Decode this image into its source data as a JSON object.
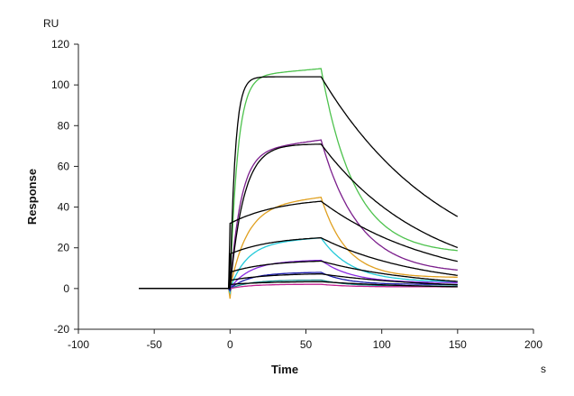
{
  "chart_data": {
    "type": "line",
    "title": "",
    "xlabel": "Time",
    "ylabel": "Response",
    "x_unit": "s",
    "y_unit": "RU",
    "xlim": [
      -100,
      200
    ],
    "ylim": [
      -20,
      120
    ],
    "xticks": [
      -100,
      -50,
      0,
      50,
      100,
      150,
      200
    ],
    "yticks": [
      -20,
      0,
      20,
      40,
      60,
      80,
      100,
      120
    ],
    "xtick_labels": [
      "-100",
      "-50",
      "0",
      "50",
      "100",
      "150",
      "200"
    ],
    "ytick_labels": [
      "-20",
      "0",
      "20",
      "40",
      "60",
      "80",
      "100",
      "120"
    ],
    "grid": false,
    "legend": "none",
    "association_window": [
      0,
      60
    ],
    "dissociation_end": 150,
    "baseline_start": -60,
    "series": [
      {
        "color": "#4dc24d",
        "plateau": 104,
        "kon": 0.2,
        "end_slope": 4,
        "koff": 0.045,
        "residual": 0.158,
        "spike": -1
      },
      {
        "color": "#7b1e8c",
        "plateau": 67,
        "kon": 0.14,
        "end_slope": 6,
        "koff": 0.04,
        "residual": 0.1,
        "spike": -3
      },
      {
        "color": "#e0a020",
        "plateau": 40,
        "kon": 0.09,
        "end_slope": 5,
        "koff": 0.06,
        "residual": 0.12,
        "spike": -5
      },
      {
        "color": "#22c9d9",
        "plateau": 22,
        "kon": 0.09,
        "end_slope": 3,
        "koff": 0.05,
        "residual": 0.13,
        "spike": -2
      },
      {
        "color": "#8a2be2",
        "plateau": 13,
        "kon": 0.08,
        "end_slope": 1,
        "koff": 0.05,
        "residual": 0.2,
        "spike": -1
      },
      {
        "color": "#1a1aa8",
        "plateau": 7.5,
        "kon": 0.08,
        "end_slope": 0.5,
        "koff": 0.06,
        "residual": 0.25,
        "spike": -1
      },
      {
        "color": "#1a8c8c",
        "plateau": 4,
        "kon": 0.08,
        "end_slope": 0.2,
        "koff": 0.06,
        "residual": 0.3,
        "spike": 0
      },
      {
        "color": "#c02090",
        "plateau": 2,
        "kon": 0.08,
        "end_slope": 0.1,
        "koff": 0.06,
        "residual": 0.4,
        "spike": 0
      }
    ],
    "fits": [
      {
        "color": "#000000",
        "plateau": 104,
        "kon": 0.3,
        "end_slope": 0,
        "koff": 0.012,
        "residual": 0.0
      },
      {
        "color": "#000000",
        "plateau": 71,
        "kon": 0.11,
        "end_slope": 0,
        "koff": 0.014,
        "residual": 0.0
      },
      {
        "color": "#000000",
        "plateau": 45,
        "kon": 0.03,
        "start": 32,
        "end_slope": 0,
        "koff": 0.013,
        "residual": 0.0
      },
      {
        "color": "#000000",
        "plateau": 26,
        "kon": 0.035,
        "start": 17,
        "end_slope": 0,
        "koff": 0.015,
        "residual": 0.0
      },
      {
        "color": "#000000",
        "plateau": 14,
        "kon": 0.04,
        "start": 8,
        "end_slope": 0,
        "koff": 0.015,
        "residual": 0.0
      },
      {
        "color": "#000000",
        "plateau": 7.5,
        "kon": 0.04,
        "start": 4,
        "end_slope": 0,
        "koff": 0.015,
        "residual": 0.0
      },
      {
        "color": "#000000",
        "plateau": 3.5,
        "kon": 0.04,
        "start": 2,
        "end_slope": 0,
        "koff": 0.015,
        "residual": 0.0
      }
    ]
  }
}
